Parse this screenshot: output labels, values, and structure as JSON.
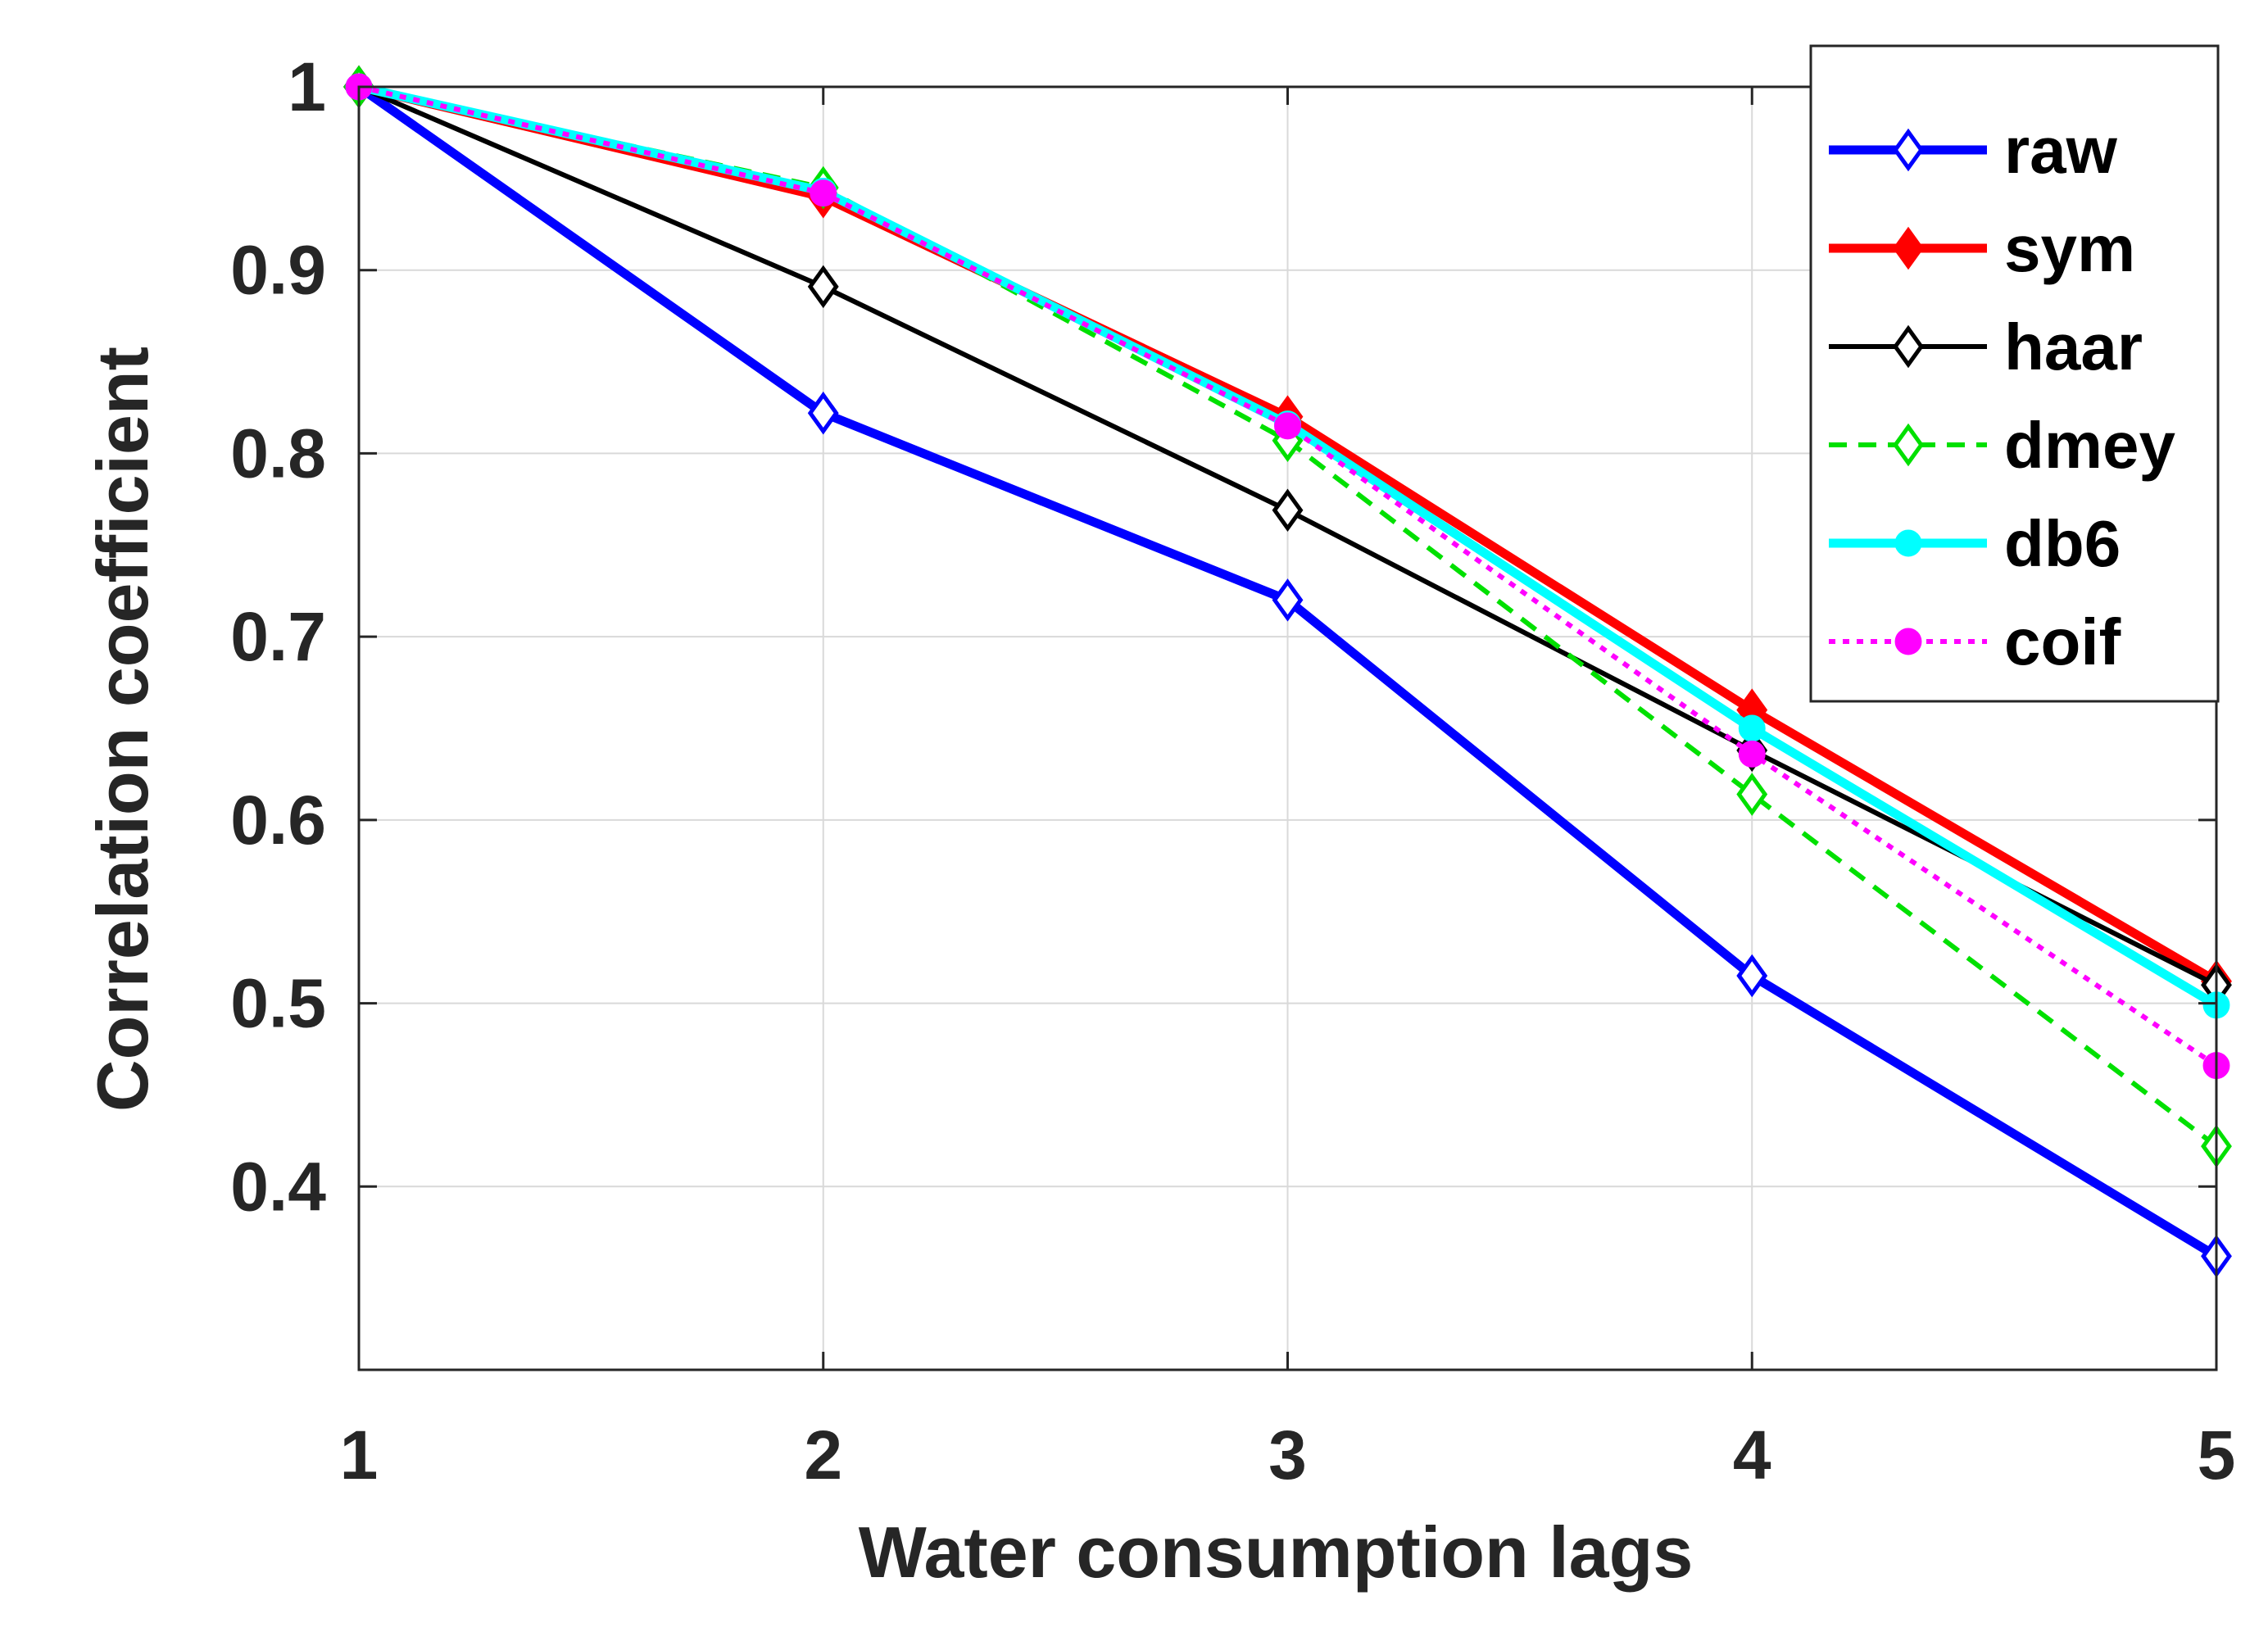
{
  "chart_data": {
    "type": "line",
    "title": "",
    "xlabel": "Water consumption lags",
    "ylabel": "Correlation coefficient",
    "x": [
      1,
      2,
      3,
      4,
      5
    ],
    "xticks": [
      "1",
      "2",
      "3",
      "4",
      "5"
    ],
    "yticks": [
      "0.4",
      "0.5",
      "0.6",
      "0.7",
      "0.8",
      "0.9",
      "1"
    ],
    "ytick_values": [
      0.4,
      0.5,
      0.6,
      0.7,
      0.8,
      0.9,
      1.0
    ],
    "xlim": [
      1,
      5
    ],
    "ylim": [
      0.3,
      1.0
    ],
    "grid": true,
    "legend_position": "top-right",
    "series": [
      {
        "name": "raw",
        "values": [
          1.0,
          0.822,
          0.72,
          0.515,
          0.362
        ],
        "color": "#0000ff",
        "line": "solid",
        "marker": "diamond-open",
        "width": "thick"
      },
      {
        "name": "sym",
        "values": [
          1.0,
          0.94,
          0.82,
          0.66,
          0.512
        ],
        "color": "#ff0000",
        "line": "solid",
        "marker": "diamond-filled",
        "width": "thick"
      },
      {
        "name": "haar",
        "values": [
          1.0,
          0.891,
          0.769,
          0.638,
          0.51
        ],
        "color": "#000000",
        "line": "solid",
        "marker": "diamond-open",
        "width": "medium"
      },
      {
        "name": "dmey",
        "values": [
          1.0,
          0.945,
          0.807,
          0.614,
          0.422
        ],
        "color": "#00e000",
        "line": "dashed",
        "marker": "diamond-open",
        "width": "medium"
      },
      {
        "name": "db6",
        "values": [
          1.0,
          0.943,
          0.816,
          0.65,
          0.499
        ],
        "color": "#00ffff",
        "line": "solid",
        "marker": "circle-filled",
        "width": "thick"
      },
      {
        "name": "coif",
        "values": [
          1.0,
          0.942,
          0.815,
          0.636,
          0.466
        ],
        "color": "#ff00ff",
        "line": "dotted",
        "marker": "circle-filled",
        "width": "medium"
      }
    ]
  }
}
